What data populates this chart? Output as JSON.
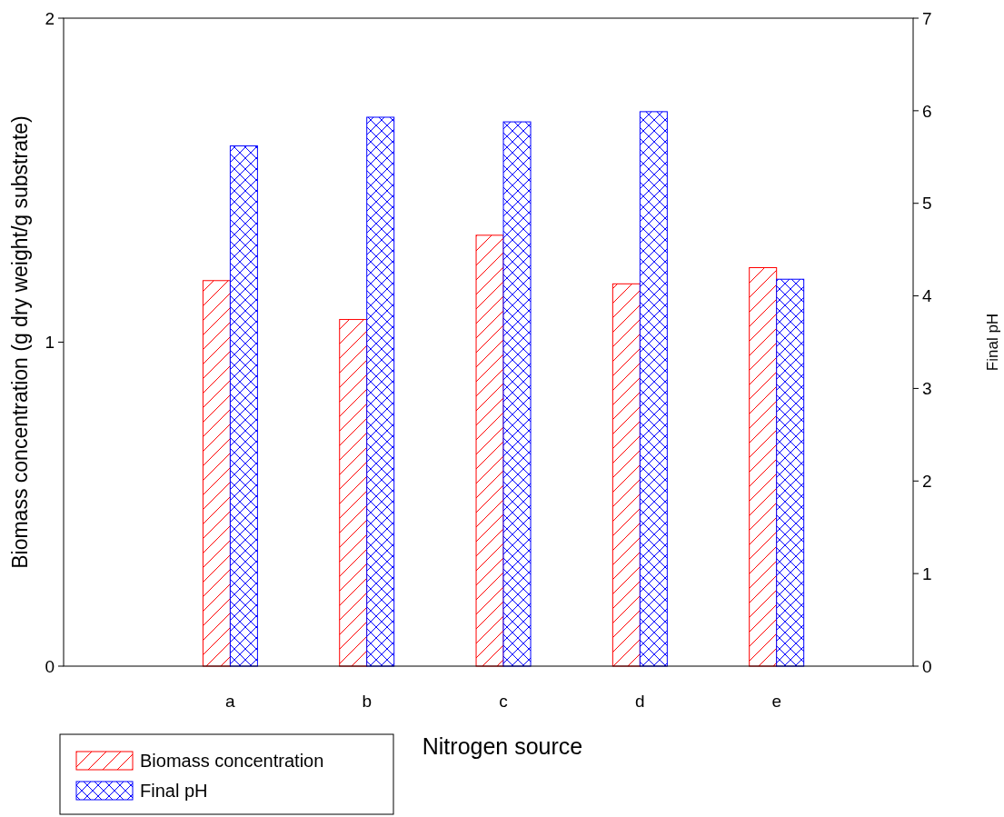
{
  "chart_data": {
    "type": "bar",
    "xlabel": "Nitrogen source",
    "ylabel": "Biomass concentration (g dry weight/g substrate)",
    "y2label": "Final pH",
    "categories": [
      "a",
      "b",
      "c",
      "d",
      "e"
    ],
    "series": [
      {
        "name": "Biomass concentration",
        "color": "#ff0000",
        "values": [
          1.19,
          1.07,
          1.33,
          1.18,
          1.23
        ]
      },
      {
        "name": "Final pH",
        "color": "#0000ff",
        "axis": "y2",
        "values": [
          5.62,
          5.93,
          5.88,
          5.99,
          4.18
        ]
      }
    ],
    "ylim": [
      0,
      2
    ],
    "yticks": [
      0,
      1,
      2
    ],
    "y2lim": [
      0,
      7
    ],
    "y2ticks": [
      0,
      1,
      2,
      3,
      4,
      5,
      6,
      7
    ],
    "grid": false,
    "legend": "bottom left"
  }
}
